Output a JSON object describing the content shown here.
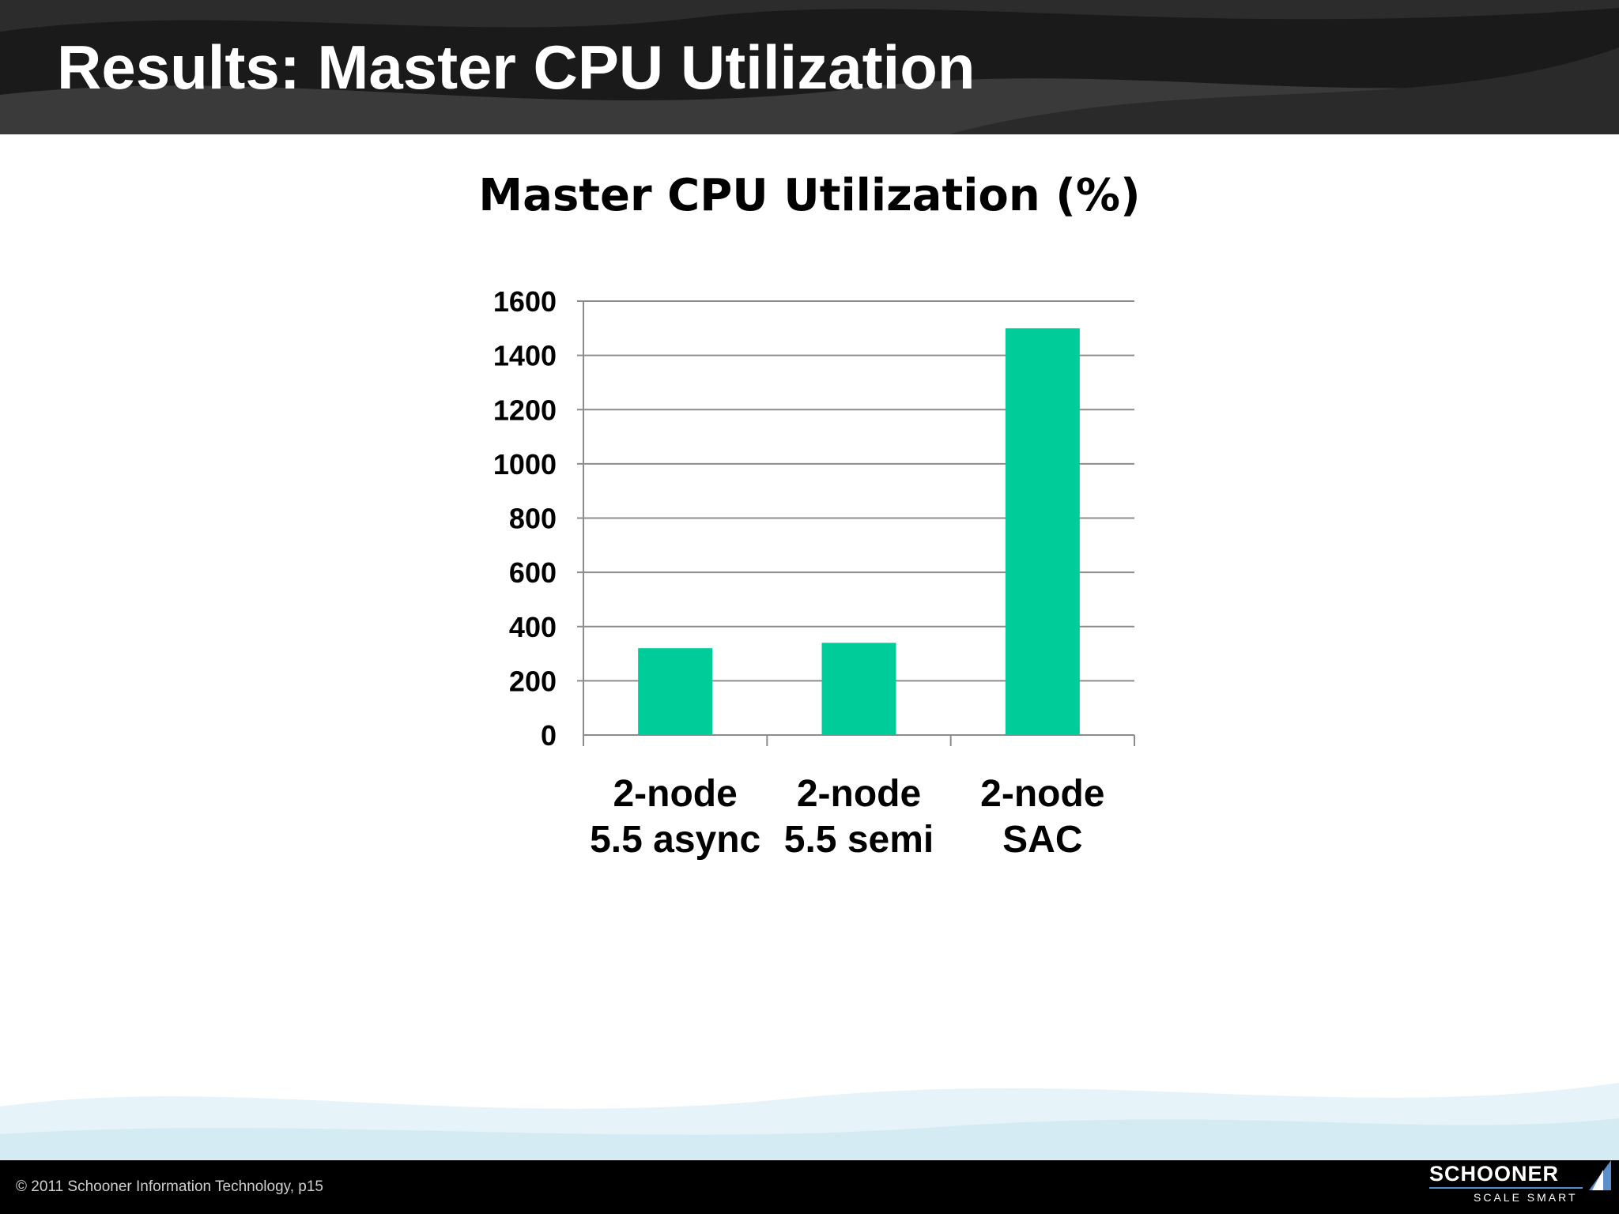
{
  "slide": {
    "title": "Results: Master CPU Utilization",
    "footer_text": "© 2011  Schooner Information Technology, p15",
    "logo_name": "SCHOONER",
    "logo_tagline": "SCALE SMART"
  },
  "colors": {
    "bar": "#00CC99",
    "header_bg": "#1a1a1a",
    "gridline": "#8c8c8c"
  },
  "chart_data": {
    "type": "bar",
    "title": "Master CPU Utilization (%)",
    "categories": [
      [
        "2-node",
        "5.5 async"
      ],
      [
        "2-node",
        "5.5 semi"
      ],
      [
        "2-node",
        "SAC"
      ]
    ],
    "values": [
      320,
      340,
      1500
    ],
    "ylim": [
      0,
      1600
    ],
    "yticks": [
      "0",
      "200",
      "400",
      "600",
      "800",
      "1000",
      "1200",
      "1400",
      "1600"
    ],
    "xlabel": "",
    "ylabel": "",
    "grid": true,
    "legend": "none"
  }
}
